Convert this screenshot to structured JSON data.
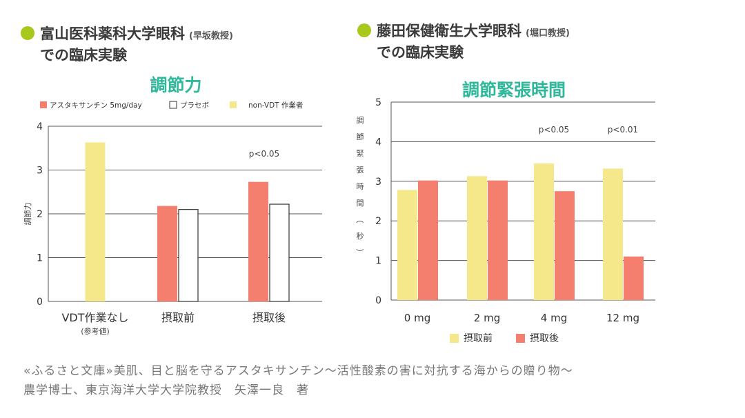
{
  "colors": {
    "accent": "#a8c81e",
    "title": "#2fb99a",
    "astaxanthin": "#f47f6f",
    "nonvdt": "#f4e88a",
    "placebo": "#ffffff",
    "before": "#f4e88a",
    "after": "#f47f6f",
    "grid": "#555555"
  },
  "left": {
    "heading": "富山医科薬科大学眼科",
    "heading_note": "(早坂教授)",
    "heading2": "での臨床実験"
  },
  "right": {
    "heading": "藤田保健衛生大学眼科",
    "heading_note": "(堀口教授)",
    "heading2": "での臨床実験"
  },
  "chart_data": [
    {
      "type": "bar",
      "title": "調節力",
      "ylabel": "調節力",
      "ylim": [
        0,
        4
      ],
      "yticks": [
        "0",
        "1",
        "2",
        "3",
        "4"
      ],
      "grid": true,
      "legend_position": "top",
      "categories": [
        "VDT作業なし",
        "摂取前",
        "摂取後"
      ],
      "category_notes": [
        "(参考値)",
        "",
        ""
      ],
      "series": [
        {
          "name": "non-VDT 作業者",
          "values": [
            3.63,
            null,
            null
          ]
        },
        {
          "name": "アスタキサンチン 5mg/day",
          "values": [
            null,
            2.18,
            2.73
          ]
        },
        {
          "name": "プラセボ",
          "values": [
            null,
            2.1,
            2.22
          ]
        }
      ],
      "annotations": [
        {
          "text": "p<0.05",
          "category": "摂取後"
        }
      ]
    },
    {
      "type": "bar",
      "title": "調節緊張時間",
      "ylabel": "調節緊張時間（秒）",
      "ylim": [
        0,
        5
      ],
      "yticks": [
        "0",
        "1",
        "2",
        "3",
        "4",
        "5"
      ],
      "grid": true,
      "legend_position": "bottom",
      "categories": [
        "0 mg",
        "2 mg",
        "4 mg",
        "12 mg"
      ],
      "series": [
        {
          "name": "摂取前",
          "values": [
            2.78,
            3.13,
            3.45,
            3.32
          ]
        },
        {
          "name": "摂取後",
          "values": [
            3.02,
            3.02,
            2.75,
            1.1
          ]
        }
      ],
      "annotations": [
        {
          "text": "p<0.05",
          "category": "4 mg"
        },
        {
          "text": "p<0.01",
          "category": "12 mg"
        }
      ]
    }
  ],
  "footer": {
    "line1": "«ふるさと文庫»美肌、目と脳を守るアスタキサンチン～活性酸素の害に対抗する海からの贈り物～",
    "line2": "農学博士、東京海洋大学大学院教授　矢澤一良　著"
  }
}
